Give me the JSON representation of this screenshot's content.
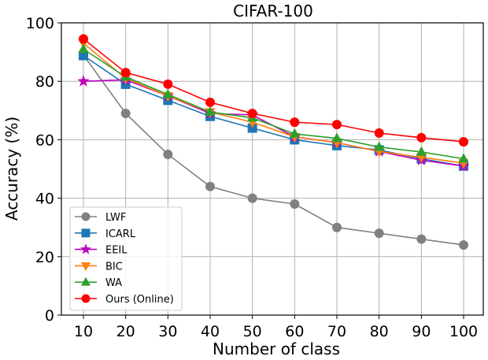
{
  "chart_data": {
    "type": "line",
    "title": "CIFAR-100",
    "xlabel": "Number of class",
    "ylabel": "Accuracy (%)",
    "x": [
      10,
      20,
      30,
      40,
      50,
      60,
      70,
      80,
      90,
      100
    ],
    "xticks": [
      "10",
      "20",
      "30",
      "40",
      "50",
      "60",
      "70",
      "80",
      "90",
      "100"
    ],
    "yticks": [
      "0",
      "20",
      "40",
      "60",
      "80",
      "100"
    ],
    "ylim": [
      0,
      100
    ],
    "grid": true,
    "legend_position": "bottom-left",
    "series": [
      {
        "name": "LWF",
        "color": "#808080",
        "marker": "circle",
        "values": [
          89,
          69,
          55,
          44,
          40,
          38,
          30,
          28,
          26,
          24
        ]
      },
      {
        "name": "ICARL",
        "color": "#1f77b4",
        "marker": "square",
        "values": [
          88.8,
          79,
          73.5,
          68,
          64,
          60,
          58,
          56.5,
          53.5,
          51
        ]
      },
      {
        "name": "EEIL",
        "color": "#c000c0",
        "marker": "star",
        "values": [
          80,
          80.5,
          75,
          69,
          68.5,
          61,
          59,
          56,
          53,
          51
        ]
      },
      {
        "name": "BIC",
        "color": "#ff7f0e",
        "marker": "triangle-down",
        "values": [
          93,
          81,
          75,
          69.5,
          66,
          61,
          59,
          56,
          54,
          52
        ]
      },
      {
        "name": "WA",
        "color": "#2ca02c",
        "marker": "triangle-up",
        "values": [
          91,
          81.5,
          75.5,
          69.5,
          67.5,
          62,
          60.5,
          57.5,
          55.8,
          53.5
        ]
      },
      {
        "name": "Ours (Online)",
        "color": "#ff0000",
        "marker": "circle",
        "values": [
          94.5,
          83,
          79,
          72.8,
          69,
          66,
          65.2,
          62.3,
          60.7,
          59.3
        ]
      }
    ]
  }
}
